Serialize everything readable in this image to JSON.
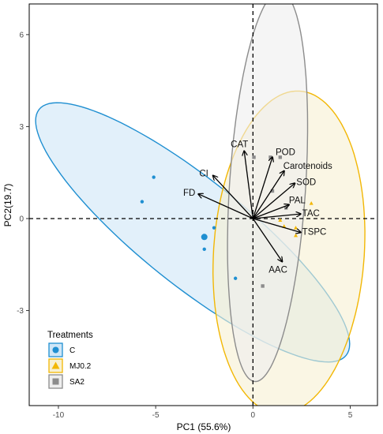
{
  "chart_data": {
    "type": "scatter",
    "subtype": "pca-biplot",
    "title": "",
    "xlabel": "PC1 (55.6%)",
    "ylabel": "PC2(19.7)",
    "xlim": [
      -11.5,
      6.4
    ],
    "ylim": [
      -6.1,
      7.0
    ],
    "xticks": [
      -10,
      -5,
      0,
      5
    ],
    "yticks": [
      -3,
      0,
      3,
      6
    ],
    "grid": false,
    "reference_lines": {
      "x": 0,
      "y": 0,
      "style": "dashed"
    },
    "legend": {
      "title": "Treatments",
      "position": "bottom-left",
      "entries": [
        {
          "label": "C",
          "shape": "circle",
          "color": "#1f8fd1"
        },
        {
          "label": "MJ0.2",
          "shape": "triangle",
          "color": "#f2b705"
        },
        {
          "label": "SA2",
          "shape": "square",
          "color": "#8c8c8c"
        }
      ]
    },
    "series": [
      {
        "name": "C",
        "color": "#1f8fd1",
        "shape": "circle",
        "points": [
          [
            -5.1,
            1.35
          ],
          [
            -5.7,
            0.55
          ],
          [
            -2.5,
            -0.6
          ],
          [
            -2.0,
            -0.3
          ],
          [
            -2.5,
            -1.0
          ],
          [
            -0.9,
            -1.95
          ]
        ],
        "centroid_index": 2,
        "ellipse": {
          "cx": -3.1,
          "cy": -0.45,
          "rx": 8.9,
          "ry": 1.95,
          "angle": -25.6,
          "fill": "#cfe6f7",
          "stroke": "#1f8fd1"
        }
      },
      {
        "name": "MJ0.2",
        "color": "#f2b705",
        "shape": "triangle",
        "points": [
          [
            1.4,
            -0.05
          ],
          [
            1.6,
            -0.25
          ],
          [
            2.2,
            -0.3
          ],
          [
            2.2,
            -0.55
          ],
          [
            3.0,
            0.5
          ]
        ],
        "ellipse": {
          "cx": 1.85,
          "cy": -1.1,
          "rx": 3.85,
          "ry": 5.3,
          "angle": -10.2,
          "fill": "#f7f0d2",
          "stroke": "#f2b705"
        }
      },
      {
        "name": "SA2",
        "color": "#8c8c8c",
        "shape": "square",
        "points": [
          [
            0.05,
            2.0
          ],
          [
            0.9,
            2.0
          ],
          [
            1.4,
            2.0
          ],
          [
            1.0,
            0.9
          ],
          [
            1.7,
            0.35
          ],
          [
            0.5,
            -2.2
          ]
        ],
        "ellipse": {
          "cx": 0.75,
          "cy": 1.05,
          "rx": 1.95,
          "ry": 6.4,
          "angle": -6.2,
          "fill": "#eeeeee",
          "stroke": "#8c8c8c"
        }
      }
    ],
    "loadings": [
      {
        "name": "POD",
        "x": 1.0,
        "y": 2.0
      },
      {
        "name": "Carotenoids",
        "x": 1.6,
        "y": 1.55
      },
      {
        "name": "SOD",
        "x": 2.15,
        "y": 1.15
      },
      {
        "name": "PAL",
        "x": 1.85,
        "y": 0.45
      },
      {
        "name": "TAC",
        "x": 2.45,
        "y": 0.15
      },
      {
        "name": "TSPC",
        "x": 2.45,
        "y": -0.45
      },
      {
        "name": "AAC",
        "x": 1.5,
        "y": -1.4
      },
      {
        "name": "CAT",
        "x": -0.45,
        "y": 2.2
      },
      {
        "name": "CI",
        "x": -2.05,
        "y": 1.4
      },
      {
        "name": "FD",
        "x": -2.8,
        "y": 0.8
      }
    ]
  }
}
